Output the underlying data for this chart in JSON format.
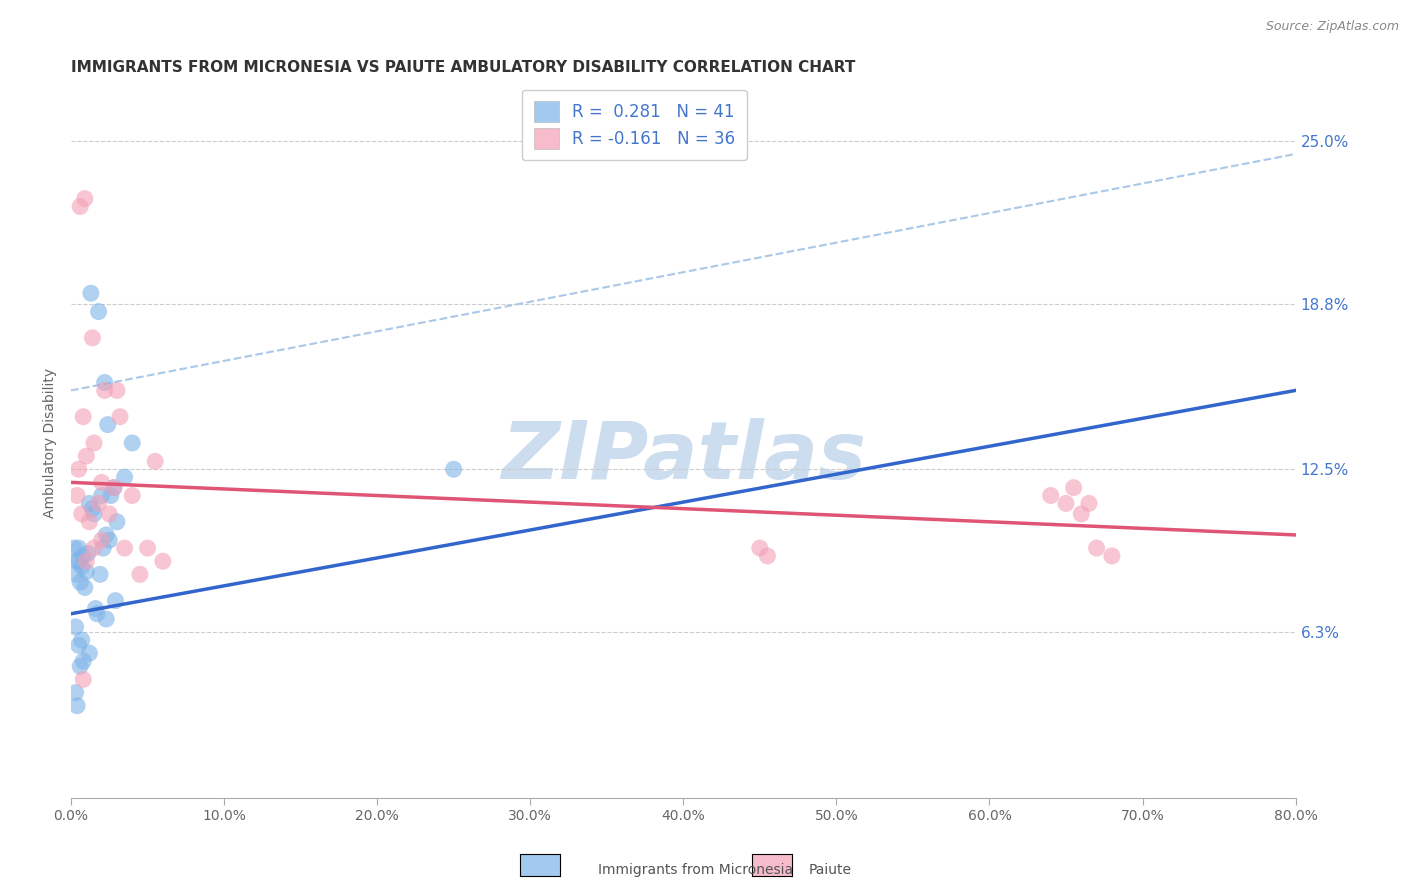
{
  "title": "IMMIGRANTS FROM MICRONESIA VS PAIUTE AMBULATORY DISABILITY CORRELATION CHART",
  "source": "Source: ZipAtlas.com",
  "ylabel": "Ambulatory Disability",
  "x_tick_values": [
    0.0,
    10.0,
    20.0,
    30.0,
    40.0,
    50.0,
    60.0,
    70.0,
    80.0
  ],
  "x_tick_labels": [
    "0.0%",
    "10.0%",
    "20.0%",
    "30.0%",
    "40.0%",
    "50.0%",
    "60.0%",
    "70.0%",
    "80.0%"
  ],
  "y_tick_values": [
    6.3,
    12.5,
    18.8,
    25.0
  ],
  "y_tick_labels": [
    "6.3%",
    "12.5%",
    "18.8%",
    "25.0%"
  ],
  "xlim": [
    0.0,
    80.0
  ],
  "ylim": [
    0.0,
    27.0
  ],
  "legend_label1": "Immigrants from Micronesia",
  "legend_label2": "Paiute",
  "color_blue": "#7eb3e8",
  "color_pink": "#f4a0b5",
  "color_blue_line": "#3366cc",
  "color_pink_line": "#e05575",
  "color_blue_dashed": "#aac8e8",
  "color_right_ticks": "#4477cc",
  "watermark_color": "#ccddef",
  "background_color": "#ffffff",
  "grid_color": "#cccccc",
  "blue_dots_x": [
    0.5,
    1.2,
    1.5,
    2.0,
    2.3,
    2.5,
    0.3,
    0.5,
    0.7,
    0.8,
    1.0,
    1.1,
    1.3,
    1.8,
    2.2,
    2.4,
    2.8,
    3.0,
    3.5,
    4.0,
    0.2,
    0.4,
    0.6,
    0.9,
    1.4,
    1.6,
    1.9,
    2.1,
    2.6,
    2.9,
    0.3,
    0.5,
    0.7,
    1.2,
    1.7,
    2.3,
    0.4,
    0.6,
    0.8,
    25.0,
    0.3
  ],
  "blue_dots_y": [
    9.5,
    11.2,
    10.8,
    11.5,
    10.0,
    9.8,
    8.5,
    9.0,
    8.8,
    9.2,
    8.6,
    9.3,
    19.2,
    18.5,
    15.8,
    14.2,
    11.8,
    10.5,
    12.2,
    13.5,
    9.5,
    9.0,
    8.2,
    8.0,
    11.0,
    7.2,
    8.5,
    9.5,
    11.5,
    7.5,
    6.5,
    5.8,
    6.0,
    5.5,
    7.0,
    6.8,
    3.5,
    5.0,
    5.2,
    12.5,
    4.0
  ],
  "pink_dots_x": [
    0.5,
    1.0,
    3.0,
    5.5,
    0.8,
    1.5,
    2.0,
    2.8,
    0.4,
    0.7,
    1.2,
    1.8,
    2.5,
    4.0,
    5.0,
    6.0,
    3.5,
    45.0,
    45.5,
    65.0,
    66.0,
    67.0,
    68.0,
    0.6,
    0.9,
    1.4,
    2.2,
    3.2,
    1.0,
    1.5,
    2.0,
    65.5,
    64.0,
    66.5,
    0.8,
    4.5
  ],
  "pink_dots_y": [
    12.5,
    13.0,
    15.5,
    12.8,
    14.5,
    13.5,
    12.0,
    11.8,
    11.5,
    10.8,
    10.5,
    11.2,
    10.8,
    11.5,
    9.5,
    9.0,
    9.5,
    9.5,
    9.2,
    11.2,
    10.8,
    9.5,
    9.2,
    22.5,
    22.8,
    17.5,
    15.5,
    14.5,
    9.0,
    9.5,
    9.8,
    11.8,
    11.5,
    11.2,
    4.5,
    8.5
  ],
  "blue_reg_x0": 0.0,
  "blue_reg_y0": 7.0,
  "blue_reg_x1": 80.0,
  "blue_reg_y1": 15.5,
  "pink_reg_x0": 0.0,
  "pink_reg_y0": 12.0,
  "pink_reg_x1": 80.0,
  "pink_reg_y1": 10.0,
  "blue_dash_x0": 0.0,
  "blue_dash_y0": 15.5,
  "blue_dash_x1": 80.0,
  "blue_dash_y1": 24.5
}
